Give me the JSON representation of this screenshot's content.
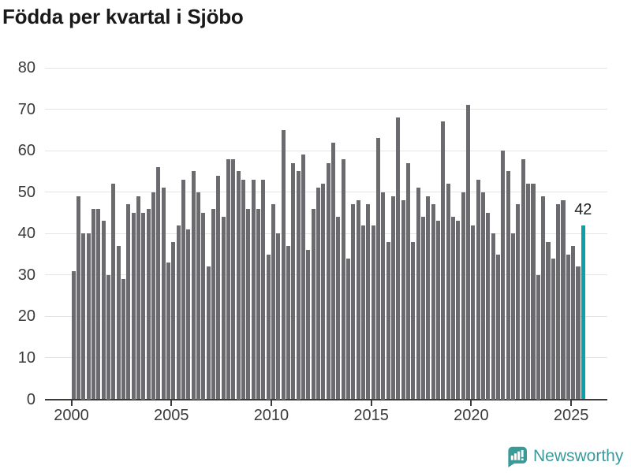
{
  "title": "Födda per kvartal i Sjöbo",
  "chart_data": {
    "type": "bar",
    "title": "Födda per kvartal i Sjöbo",
    "frequency": "quarterly",
    "x_start": "2000 Q1",
    "x_end": "2025 Q3",
    "x_tick_labels": [
      "2000",
      "2005",
      "2010",
      "2015",
      "2020",
      "2025"
    ],
    "y_ticks": [
      0,
      10,
      20,
      30,
      40,
      50,
      60,
      70,
      80
    ],
    "ylim": [
      0,
      80
    ],
    "grid": "horizontal",
    "legend": "none",
    "values": [
      31,
      49,
      40,
      40,
      46,
      46,
      43,
      30,
      52,
      37,
      29,
      47,
      45,
      49,
      45,
      46,
      50,
      56,
      51,
      33,
      38,
      42,
      53,
      41,
      55,
      50,
      45,
      32,
      46,
      54,
      44,
      58,
      58,
      55,
      53,
      46,
      53,
      46,
      53,
      35,
      47,
      40,
      65,
      37,
      57,
      55,
      59,
      36,
      46,
      51,
      52,
      57,
      62,
      44,
      58,
      34,
      47,
      48,
      42,
      47,
      42,
      63,
      50,
      38,
      49,
      68,
      48,
      57,
      38,
      51,
      44,
      49,
      47,
      43,
      67,
      52,
      44,
      43,
      50,
      71,
      42,
      53,
      50,
      45,
      40,
      35,
      60,
      55,
      40,
      47,
      58,
      52,
      52,
      30,
      49,
      38,
      34,
      47,
      48,
      35,
      37,
      32,
      42
    ],
    "highlight": {
      "index": 102,
      "quarter": "2025 Q3",
      "value": 42,
      "label": "42"
    },
    "bar_color": "#6b6b6f",
    "highlight_color": "#0aa2a6",
    "axis_color": "#3a3a3a",
    "gridline_color": "#e4e4e4"
  },
  "footer": {
    "brand": "Newsworthy",
    "logo_icon": "bar-chart-speech-bubble-icon",
    "brand_color": "#3a9a9a"
  }
}
